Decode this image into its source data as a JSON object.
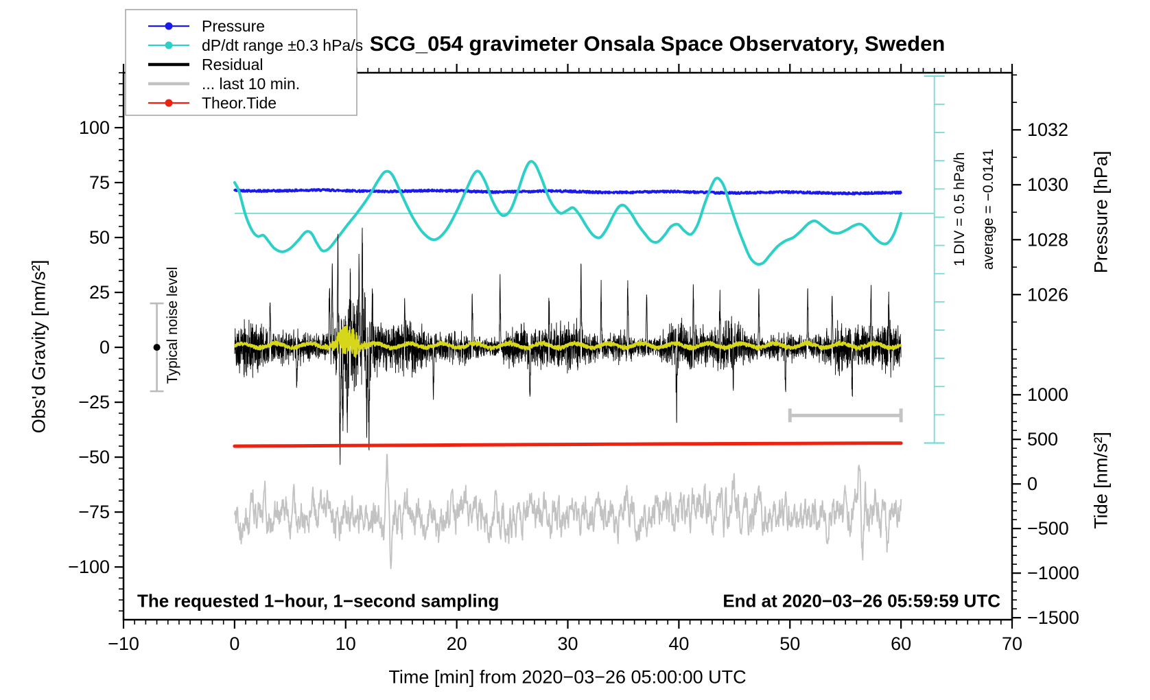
{
  "figure": {
    "title": "SCG_054 gravimeter Onsala Space Observatory, Sweden"
  },
  "legend": {
    "entries": [
      {
        "label": "Pressure",
        "color": "#1a1aef",
        "marker": "line-dot"
      },
      {
        "label": "dP/dt range ±0.3 hPa/s",
        "color": "#2cd0c8",
        "marker": "line-dot"
      },
      {
        "label": "Residual",
        "color": "#000000",
        "marker": "thick-line"
      },
      {
        "label": "... last 10 min.",
        "color": "#c2c2c2",
        "marker": "thick-line"
      },
      {
        "label": "Theor.Tide",
        "color": "#ee2211",
        "marker": "line-dot"
      }
    ]
  },
  "chart_data": {
    "type": "line",
    "title": "SCG_054 gravimeter Onsala Space Observatory, Sweden",
    "xlabel": "Time [min] from 2020−03−26 05:00:00 UTC",
    "x_axis": {
      "min": -10,
      "max": 70,
      "major_step": 10,
      "minor_step": 1
    },
    "y_left": {
      "label": "Obs'd Gravity [nm/s²]",
      "min": -124,
      "max": 125,
      "major_ticks": [
        -100,
        -75,
        -50,
        -25,
        0,
        25,
        50,
        75,
        100
      ],
      "minor_step": 5
    },
    "y_right_pressure": {
      "label": "Pressure [hPa]",
      "major_ticks": [
        1026,
        1028,
        1030,
        1032
      ],
      "minor_step": 1,
      "minor_range": [
        1024,
        1034
      ],
      "gravity_of_1032": 99,
      "gravity_per_hpa": 12.5
    },
    "y_right_tide": {
      "label": "Tide [nm/s²]",
      "major_ticks": [
        -1500,
        -1000,
        -500,
        0,
        500,
        1000
      ],
      "minor_step": 100,
      "minor_range": [
        -1500,
        1400
      ],
      "gravity_of_zero": -62.2,
      "gravity_per_unit": 0.0406
    },
    "annotations": {
      "sampling_note": "The requested 1−hour, 1−second sampling",
      "end_note": "End at 2020−03−26 05:59:59 UTC",
      "div_label": "1 DIV = 0.5 hPa/h",
      "average_label": "average = −0.0141",
      "noise_marker": {
        "label": "Typical noise level",
        "t": -7,
        "center_gravity": 0,
        "half_range": 20
      },
      "dpdt_zero_line": {
        "gravity": 61,
        "t_start": 0,
        "t_end": 63
      },
      "div_ruler": {
        "t": 63,
        "top_gravity": 123.5,
        "divisions": 13,
        "gravity_per_div": 12.85
      },
      "last10_bar": {
        "t0": 50,
        "t1": 60,
        "gravity": -31
      }
    },
    "series": [
      {
        "name": "Pressure",
        "type": "trend_noise",
        "color": "#1a1aef",
        "width": 3.2,
        "gravity_start": 71.5,
        "gravity_end": 70.2,
        "jitter": 0.45,
        "hpa_start": 1029.87,
        "hpa_end": 1029.77
      },
      {
        "name": "dP/dt range ±0.3 hPa/s",
        "type": "smooth",
        "color": "#2cd0c8",
        "width": 4,
        "points_t_gravity": [
          [
            0,
            75
          ],
          [
            0.4,
            71
          ],
          [
            1,
            60
          ],
          [
            1.6,
            53
          ],
          [
            2.1,
            50.5
          ],
          [
            2.6,
            51
          ],
          [
            3.1,
            48
          ],
          [
            3.6,
            45
          ],
          [
            4.3,
            43.5
          ],
          [
            5,
            45
          ],
          [
            5.7,
            48.5
          ],
          [
            6.4,
            52.5
          ],
          [
            6.9,
            52
          ],
          [
            7.4,
            47.5
          ],
          [
            7.9,
            44
          ],
          [
            8.5,
            45
          ],
          [
            9.3,
            50
          ],
          [
            10.2,
            56
          ],
          [
            11,
            61
          ],
          [
            12,
            68
          ],
          [
            13,
            76.5
          ],
          [
            13.6,
            80
          ],
          [
            14.2,
            78.5
          ],
          [
            15,
            70
          ],
          [
            16,
            59.5
          ],
          [
            17,
            52
          ],
          [
            18,
            49
          ],
          [
            19,
            53
          ],
          [
            20,
            62
          ],
          [
            20.8,
            71
          ],
          [
            21.5,
            78.5
          ],
          [
            22,
            80
          ],
          [
            22.6,
            75
          ],
          [
            23.2,
            67
          ],
          [
            23.8,
            61.5
          ],
          [
            24.3,
            60
          ],
          [
            24.9,
            63
          ],
          [
            25.5,
            71
          ],
          [
            26.1,
            80
          ],
          [
            26.6,
            84.5
          ],
          [
            27.1,
            83
          ],
          [
            27.7,
            76
          ],
          [
            28.3,
            68
          ],
          [
            28.9,
            63
          ],
          [
            29.4,
            61
          ],
          [
            30,
            62.5
          ],
          [
            30.5,
            63.5
          ],
          [
            31.1,
            60
          ],
          [
            31.7,
            55
          ],
          [
            32.3,
            51
          ],
          [
            32.9,
            50
          ],
          [
            33.5,
            54
          ],
          [
            34.1,
            60
          ],
          [
            34.6,
            64
          ],
          [
            35.1,
            64.5
          ],
          [
            35.7,
            61
          ],
          [
            36.3,
            56
          ],
          [
            36.9,
            52
          ],
          [
            37.5,
            48.5
          ],
          [
            38.1,
            48
          ],
          [
            38.7,
            51
          ],
          [
            39.3,
            55
          ],
          [
            39.9,
            56
          ],
          [
            40.5,
            53
          ],
          [
            41.1,
            51.5
          ],
          [
            41.7,
            56
          ],
          [
            42.3,
            65
          ],
          [
            42.9,
            73
          ],
          [
            43.4,
            77
          ],
          [
            44,
            74
          ],
          [
            44.6,
            65
          ],
          [
            45.2,
            56
          ],
          [
            45.8,
            48
          ],
          [
            46.4,
            41
          ],
          [
            47,
            38
          ],
          [
            47.6,
            38.5
          ],
          [
            48.2,
            42
          ],
          [
            48.9,
            46
          ],
          [
            49.6,
            48.5
          ],
          [
            50.3,
            50
          ],
          [
            51,
            53
          ],
          [
            51.7,
            56.5
          ],
          [
            52.3,
            57.5
          ],
          [
            53,
            55
          ],
          [
            53.7,
            52.5
          ],
          [
            54.4,
            52
          ],
          [
            55.1,
            53.5
          ],
          [
            55.8,
            55.5
          ],
          [
            56.4,
            56
          ],
          [
            57,
            53.5
          ],
          [
            57.6,
            50
          ],
          [
            58.2,
            47.5
          ],
          [
            58.8,
            47.5
          ],
          [
            59.4,
            52
          ],
          [
            60,
            61
          ]
        ]
      },
      {
        "name": "Residual",
        "type": "noise",
        "color": "#000000",
        "width": 0.9,
        "center": 0,
        "base_amp": 7,
        "burst": {
          "t_center": 10.6,
          "t_sigma": 1.9,
          "amp": 13
        },
        "spikes": [
          [
            3.2,
            22
          ],
          [
            5.6,
            -20
          ],
          [
            8.55,
            31
          ],
          [
            8.8,
            38
          ],
          [
            9.3,
            49
          ],
          [
            9.5,
            -57
          ],
          [
            9.75,
            -40
          ],
          [
            10.15,
            -33
          ],
          [
            10.4,
            30
          ],
          [
            11.2,
            44
          ],
          [
            11.5,
            50
          ],
          [
            11.9,
            -35
          ],
          [
            12.1,
            -47
          ],
          [
            12.4,
            30
          ],
          [
            15.3,
            24
          ],
          [
            17.9,
            -22
          ],
          [
            21.4,
            26
          ],
          [
            23.9,
            30
          ],
          [
            26.6,
            -22
          ],
          [
            28.3,
            24
          ],
          [
            31.2,
            36
          ],
          [
            33.0,
            28
          ],
          [
            35.4,
            31
          ],
          [
            37.1,
            25
          ],
          [
            39.8,
            -24
          ],
          [
            41.3,
            28
          ],
          [
            43.7,
            24
          ],
          [
            44.9,
            -22
          ],
          [
            47.2,
            25
          ],
          [
            49.6,
            -21
          ],
          [
            51.6,
            27
          ],
          [
            53.8,
            24
          ],
          [
            55.6,
            -23
          ],
          [
            57.3,
            28
          ],
          [
            58.9,
            22
          ]
        ]
      },
      {
        "name": "Residual smoothed",
        "type": "yellow",
        "color": "#d6d61a",
        "width": 2.2,
        "center": 0.8,
        "amp": 1.4,
        "burst": {
          "t_center": 10.2,
          "t_sigma": 1.2,
          "amp": 7
        }
      },
      {
        "name": "... last 10 min.",
        "type": "walk",
        "color": "#c2c2c2",
        "width": 1.8,
        "center_gravity": -76,
        "spikes": [
          [
            13.75,
            21
          ],
          [
            14.05,
            -17
          ],
          [
            18.4,
            -18
          ],
          [
            23.1,
            -17
          ],
          [
            29.4,
            -16
          ],
          [
            44.9,
            16
          ],
          [
            56.2,
            24
          ],
          [
            56.55,
            -22
          ],
          [
            58.8,
            -15
          ]
        ]
      },
      {
        "name": "Theor.Tide",
        "type": "tide",
        "color": "#ee2211",
        "width": 5,
        "tide_values_every_5min": [
          424,
          427,
          430,
          433,
          437,
          440,
          443,
          446,
          449,
          452,
          454,
          456,
          458
        ]
      }
    ]
  }
}
